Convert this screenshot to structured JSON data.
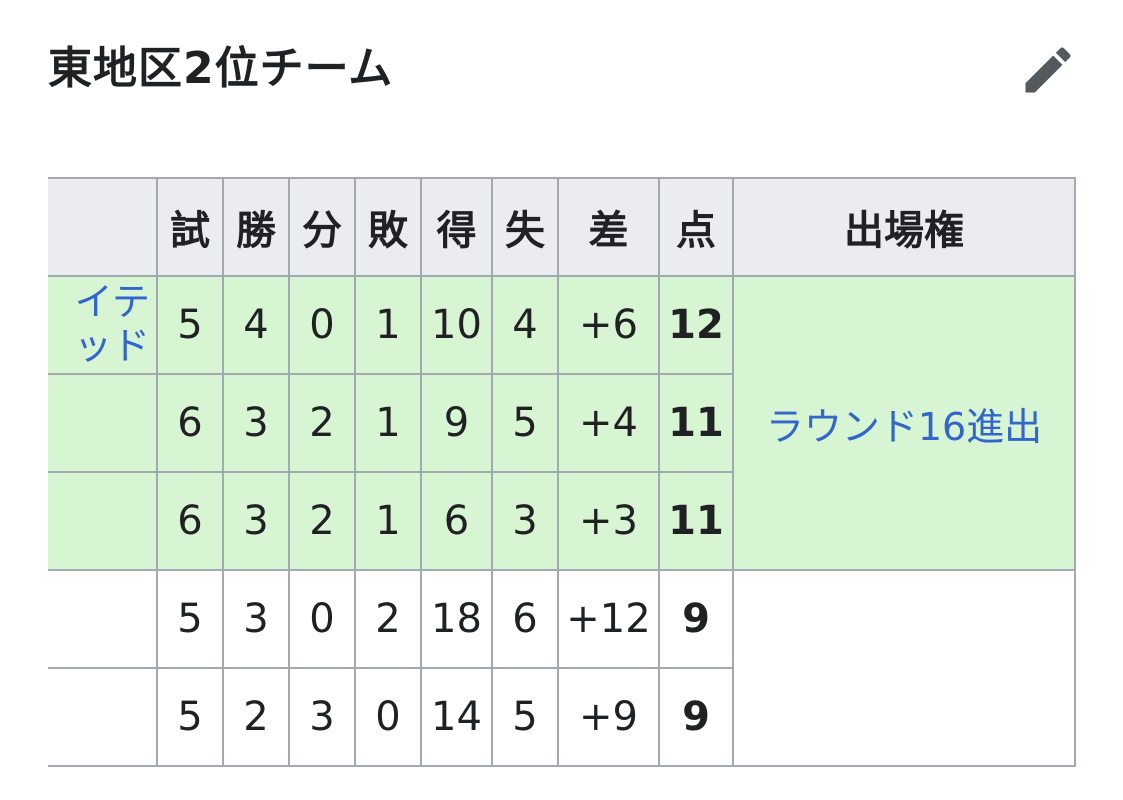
{
  "title": "東地区2位チーム",
  "icons": {
    "edit": "pencil-icon"
  },
  "table": {
    "headers": [
      "",
      "試",
      "勝",
      "分",
      "敗",
      "得",
      "失",
      "差",
      "点",
      "出場権"
    ],
    "rows": [
      {
        "team": "イテッド",
        "cells": [
          "5",
          "4",
          "0",
          "1",
          "10",
          "4",
          "+6",
          "12"
        ]
      },
      {
        "team": "",
        "cells": [
          "6",
          "3",
          "2",
          "1",
          "9",
          "5",
          "+4",
          "11"
        ]
      },
      {
        "team": "",
        "cells": [
          "6",
          "3",
          "2",
          "1",
          "6",
          "3",
          "+3",
          "11"
        ]
      },
      {
        "team": "",
        "cells": [
          "5",
          "3",
          "0",
          "2",
          "18",
          "6",
          "+12",
          "9"
        ]
      },
      {
        "team": "",
        "cells": [
          "5",
          "2",
          "3",
          "0",
          "14",
          "5",
          "+9",
          "9"
        ]
      }
    ],
    "qualification": "ラウンド16進出",
    "qualified_color": "#d8f5d3"
  }
}
